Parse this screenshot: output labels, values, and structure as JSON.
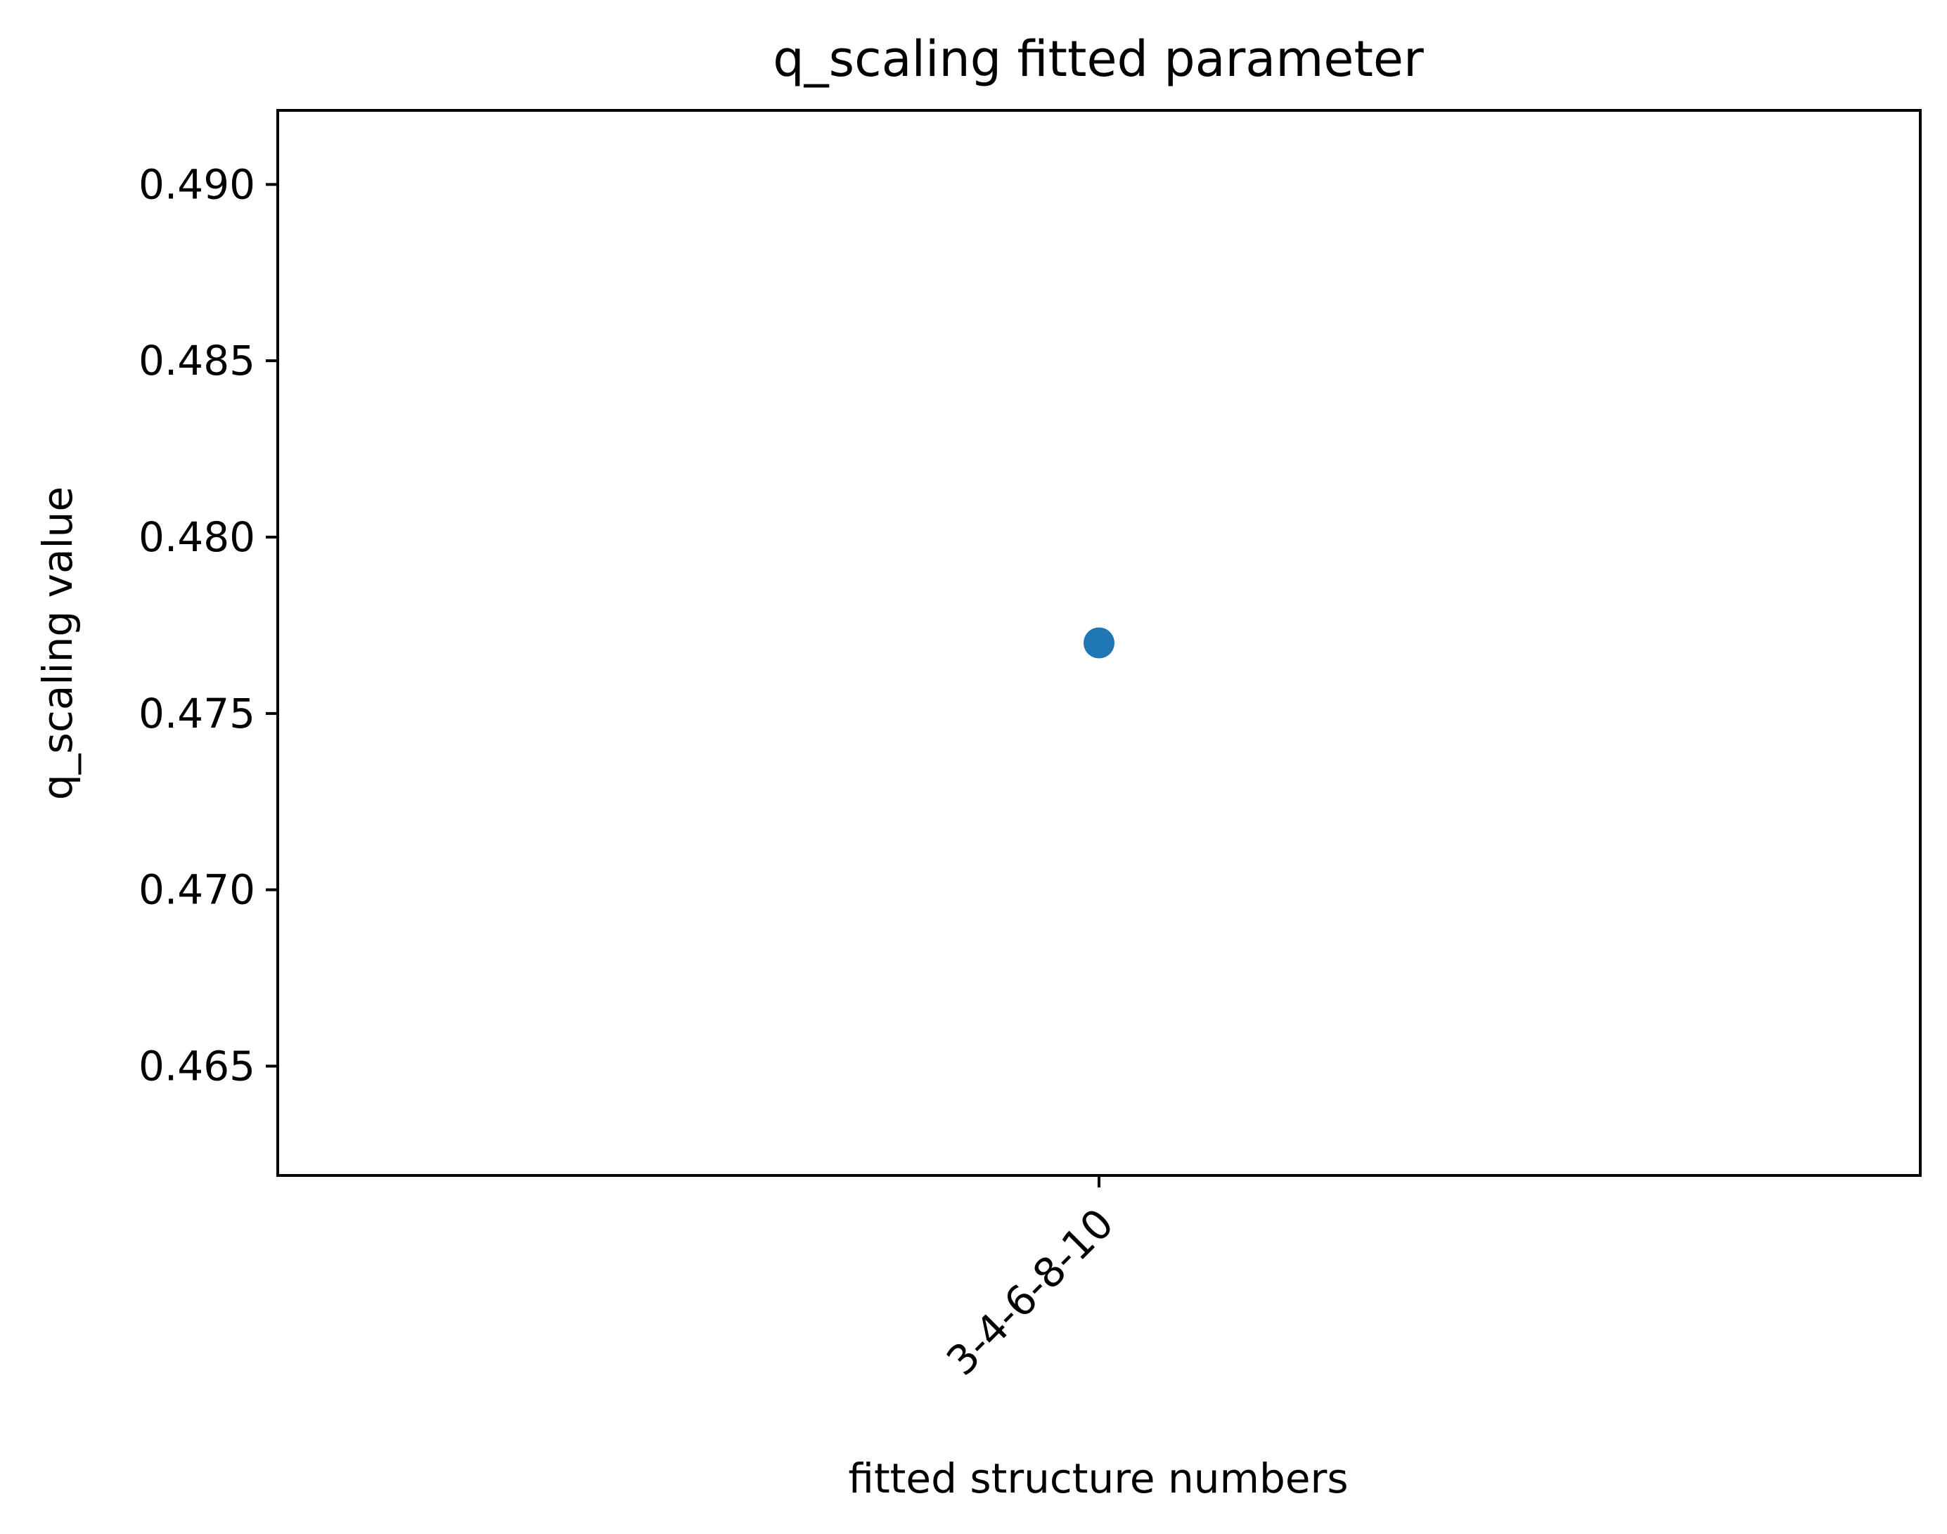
{
  "chart_data": {
    "type": "scatter",
    "title": "q_scaling fitted parameter",
    "xlabel": "fitted structure numbers",
    "ylabel": "q_scaling value",
    "categories": [
      "3-4-6-8-10"
    ],
    "series": [
      {
        "values": [
          0.477
        ],
        "color": "#1f77b4"
      }
    ],
    "ylim": [
      0.4619,
      0.4921
    ],
    "yticks": [
      0.465,
      0.47,
      0.475,
      0.48,
      0.485,
      0.49
    ],
    "ytick_labels": [
      "0.465",
      "0.470",
      "0.475",
      "0.480",
      "0.485",
      "0.490"
    ],
    "xtick_rotation": -45,
    "grid": false,
    "legend": "none"
  }
}
